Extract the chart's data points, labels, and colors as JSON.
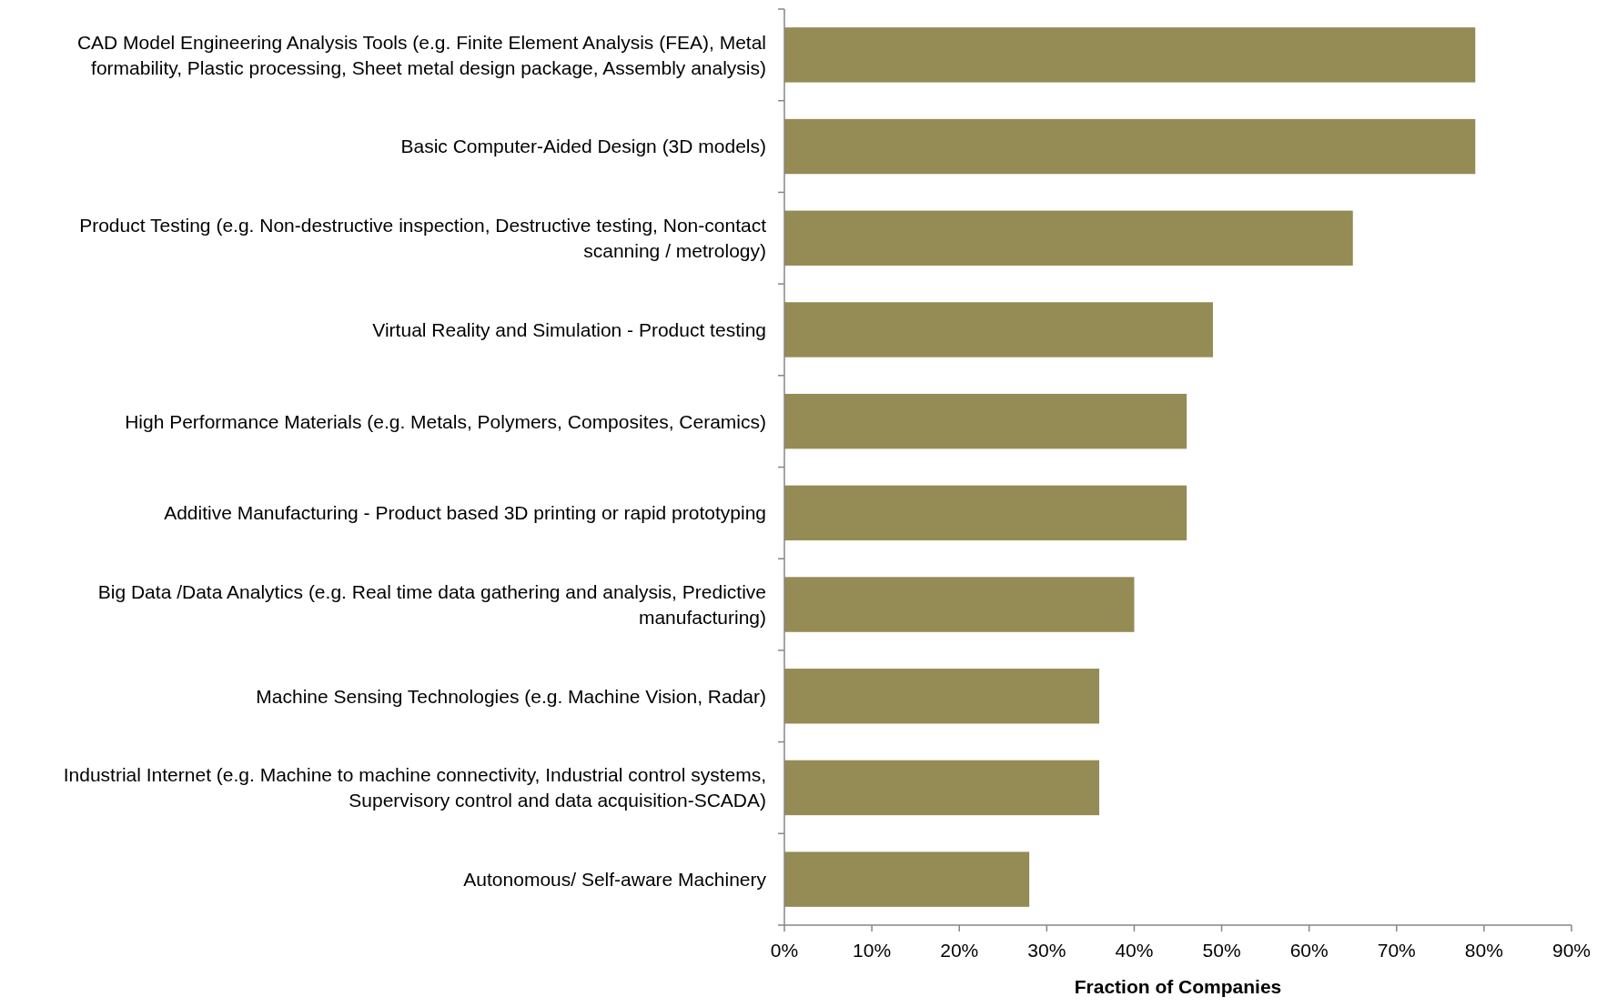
{
  "chart_data": {
    "type": "bar",
    "orientation": "horizontal",
    "categories": [
      "CAD Model Engineering Analysis Tools  (e.g. Finite Element Analysis (FEA), Metal formability, Plastic processing, Sheet metal design package, Assembly analysis)",
      "Basic Computer-Aided Design (3D models)",
      "Product Testing (e.g.  Non-destructive inspection, Destructive  testing, Non-contact scanning / metrology)",
      "Virtual Reality and Simulation - Product testing",
      "High Performance Materials  (e.g. Metals, Polymers, Composites, Ceramics)",
      "Additive Manufacturing - Product based 3D printing or rapid prototyping",
      "Big Data /Data Analytics (e.g. Real time data gathering and analysis, Predictive manufacturing)",
      "Machine Sensing Technologies  (e.g. Machine Vision, Radar)",
      "Industrial Internet  (e.g. Machine to machine connectivity, Industrial control systems, Supervisory  control and data acquisition-SCADA)",
      "Autonomous/ Self-aware Machinery"
    ],
    "values": [
      79,
      79,
      65,
      49,
      46,
      46,
      40,
      36,
      36,
      28
    ],
    "color": "#958b54",
    "xlabel": "Fraction of Companies",
    "xlim": [
      0,
      90
    ],
    "xticks": [
      {
        "value": 0,
        "label": "0%"
      },
      {
        "value": 10,
        "label": "10%"
      },
      {
        "value": 20,
        "label": "20%"
      },
      {
        "value": 30,
        "label": "30%"
      },
      {
        "value": 40,
        "label": "40%"
      },
      {
        "value": 50,
        "label": "50%"
      },
      {
        "value": 60,
        "label": "60%"
      },
      {
        "value": 70,
        "label": "70%"
      },
      {
        "value": 80,
        "label": "80%"
      },
      {
        "value": 90,
        "label": "90%"
      }
    ],
    "grid": false
  }
}
